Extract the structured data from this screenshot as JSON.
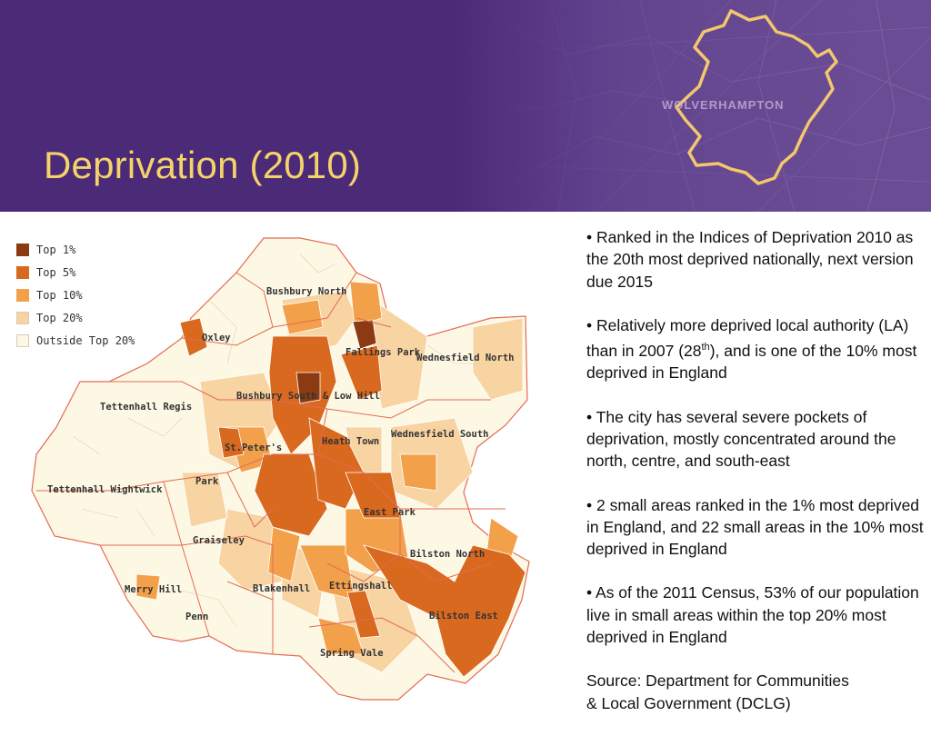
{
  "header": {
    "title": "Deprivation (2010)",
    "map_label": "WOLVERHAMPTON"
  },
  "legend": {
    "items": [
      {
        "label": "Top 1%",
        "color": "#8b3a12"
      },
      {
        "label": "Top 5%",
        "color": "#d9691f"
      },
      {
        "label": "Top 10%",
        "color": "#f3a04a"
      },
      {
        "label": "Top 20%",
        "color": "#f8d4a3"
      },
      {
        "label": "Outside Top 20%",
        "color": "#fdf8e4"
      }
    ]
  },
  "wards": [
    "Bushbury North",
    "Oxley",
    "Fallings Park",
    "Wednesfield North",
    "Tettenhall Regis",
    "Bushbury South & Low Hill",
    "Heath Town",
    "Wednesfield South",
    "St.Peter's",
    "Park",
    "Tettenhall Wightwick",
    "East Park",
    "Graiseley",
    "Bilston North",
    "Merry Hill",
    "Blakenhall",
    "Ettingshall",
    "Penn",
    "Bilston East",
    "Spring Vale"
  ],
  "bullets": [
    "• Ranked in the Indices of Deprivation 2010 as the 20th most deprived nationally, next version due 2015",
    "• Relatively more deprived local authority (LA) than in 2007 (28",
    "th",
    "), and is one of the 10% most deprived in England",
    "• The city has several severe pockets of deprivation, mostly concentrated around the north, centre, and south-east",
    "• 2 small areas ranked in the 1% most deprived in England, and 22 small areas in the 10% most deprived in England",
    "• As of the 2011 Census, 53% of our population live in small areas within the top 20% most deprived in England"
  ],
  "source": {
    "line1": "Source: Department for Communities",
    "line2": "& Local Government (DCLG)"
  }
}
